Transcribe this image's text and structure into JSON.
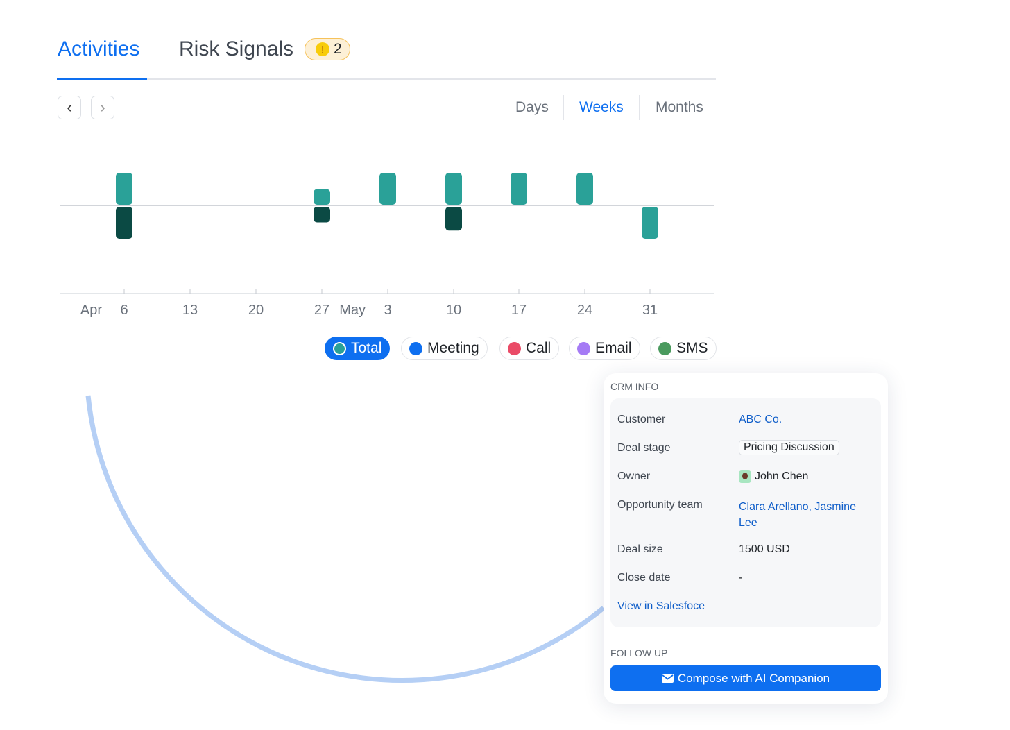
{
  "tabs": {
    "activities": "Activities",
    "risk_signals": "Risk Signals",
    "risk_count": "2",
    "risk_icon": "!"
  },
  "periods": {
    "days": "Days",
    "weeks": "Weeks",
    "months": "Months",
    "selected": "Weeks"
  },
  "chart_data": {
    "type": "bar",
    "categories": [
      "Apr 6",
      "13",
      "20",
      "27",
      "May 3",
      "10",
      "17",
      "24",
      "31"
    ],
    "tick_labels": [
      "6",
      "13",
      "20",
      "27",
      "3",
      "10",
      "17",
      "24",
      "31"
    ],
    "month_labels": [
      {
        "label": "Apr",
        "before": "6"
      },
      {
        "label": "May",
        "before": "3"
      }
    ],
    "series": [
      {
        "values_above": [
          2,
          0,
          0,
          1,
          2,
          2,
          2,
          2,
          0
        ],
        "color": "#2aa198"
      },
      {
        "values_below": [
          2,
          0,
          0,
          1,
          0,
          1.5,
          0,
          0,
          0
        ],
        "color": "#0b4a44"
      },
      {
        "values_below": [
          0,
          0,
          0,
          0,
          0,
          0,
          0,
          0,
          2
        ],
        "color": "#2aa198"
      }
    ],
    "grid": false
  },
  "legend": [
    {
      "label": "Total",
      "color": "#2aa198",
      "selected": true
    },
    {
      "label": "Meeting",
      "color": "#0e6ff0"
    },
    {
      "label": "Call",
      "color": "#ea4b67"
    },
    {
      "label": "Email",
      "color": "#a57bf5"
    },
    {
      "label": "SMS",
      "color": "#4a9a5e"
    }
  ],
  "crm": {
    "title": "CRM INFO",
    "customer_label": "Customer",
    "customer": "ABC Co.",
    "stage_label": "Deal stage",
    "stage": "Pricing Discussion",
    "owner_label": "Owner",
    "owner": "John Chen",
    "team_label": "Opportunity team",
    "team": "Clara Arellano, Jasmine Lee",
    "size_label": "Deal size",
    "size": "1500 USD",
    "close_label": "Close date",
    "close": "-",
    "view_link": "View in Salesfoce"
  },
  "follow_up": {
    "title": "FOLLOW UP",
    "button": "Compose with AI Companion"
  }
}
